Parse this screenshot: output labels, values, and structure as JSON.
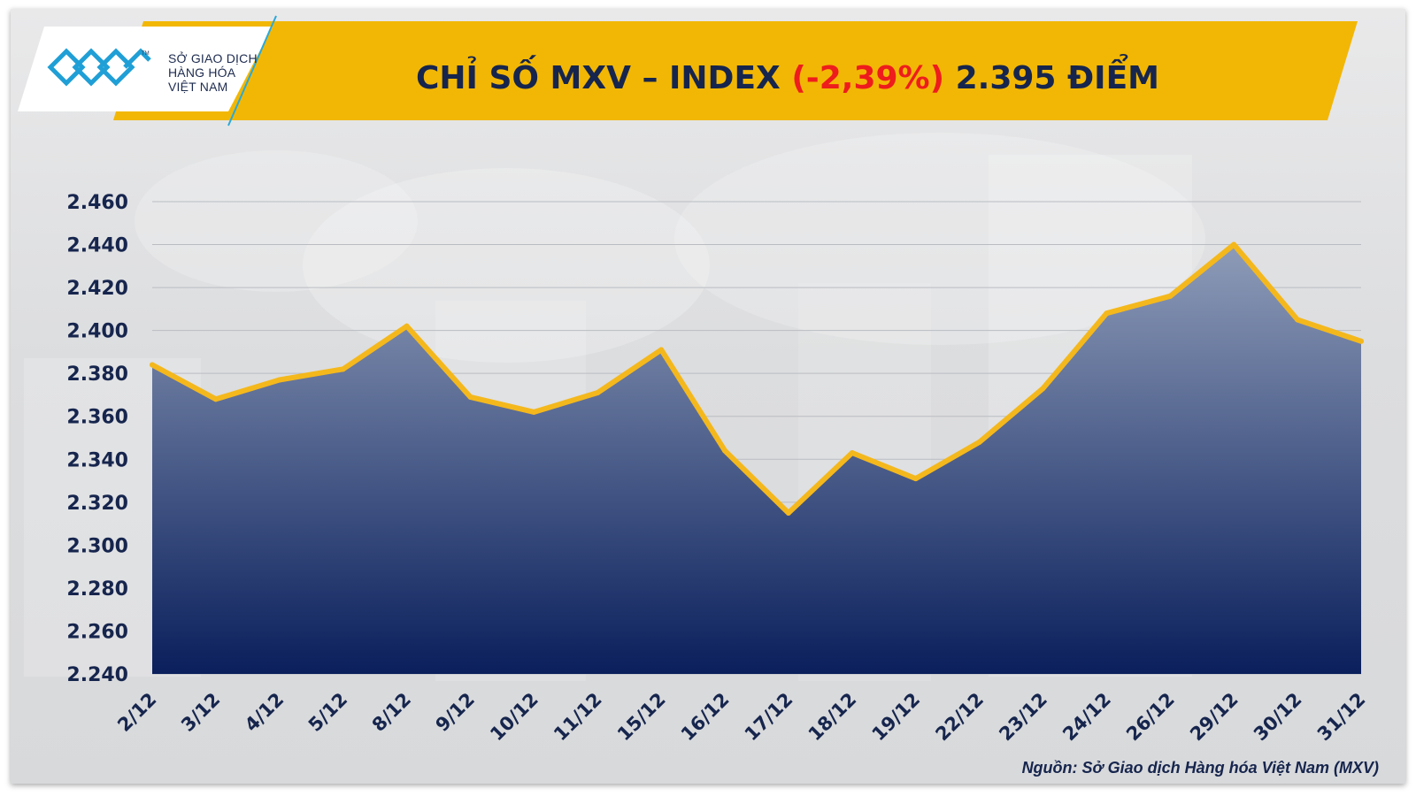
{
  "logo": {
    "line1": "SỞ GIAO DỊCH",
    "line2": "HÀNG HÓA",
    "line3": "VIỆT NAM",
    "tm": "TM",
    "icon": "mxv-logo-icon"
  },
  "title": {
    "prefix": "CHỈ SỐ MXV – INDEX ",
    "change": "(-2,39%)",
    "suffix": " 2.395 ĐIỂM"
  },
  "colors": {
    "band": "#f2b705",
    "line": "#f4b81c",
    "area_top": "#8e9cb8",
    "area_bottom": "#0a1f5c",
    "text": "#16254d",
    "negative": "#ee1c1c"
  },
  "chart_data": {
    "type": "area",
    "categories": [
      "2/12",
      "3/12",
      "4/12",
      "5/12",
      "8/12",
      "9/12",
      "10/12",
      "11/12",
      "15/12",
      "16/12",
      "17/12",
      "18/12",
      "19/12",
      "22/12",
      "23/12",
      "24/12",
      "26/12",
      "29/12",
      "30/12",
      "31/12"
    ],
    "series": [
      {
        "values": [
          2384,
          2368,
          2377,
          2382,
          2402,
          2369,
          2362,
          2371,
          2391,
          2344,
          2315,
          2343,
          2331,
          2348,
          2373,
          2408,
          2416,
          2440,
          2405,
          2395
        ]
      }
    ],
    "yticks": [
      "2.460",
      "2.440",
      "2.420",
      "2.400",
      "2.380",
      "2.360",
      "2.340",
      "2.320",
      "2.300",
      "2.280",
      "2.260",
      "2.240"
    ],
    "ylim": [
      2240,
      2460
    ],
    "grid": true
  },
  "source": "Nguồn: Sở Giao dịch Hàng hóa Việt Nam (MXV)"
}
